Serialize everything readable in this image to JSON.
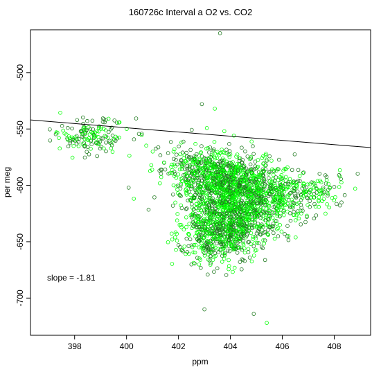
{
  "chart_data": {
    "type": "scatter",
    "title": "160726c   Interval a O2 vs. CO2",
    "xlabel": "ppm",
    "ylabel": "per meg",
    "xlim": [
      396.3,
      409.4
    ],
    "ylim": [
      -733,
      -462
    ],
    "xticks": [
      398,
      400,
      402,
      404,
      406,
      408
    ],
    "yticks": [
      -700,
      -650,
      -600,
      -550,
      -500
    ],
    "grid": false,
    "legend": "none",
    "annotation": "slope =  -1.81",
    "fit_line": {
      "slope": -1.81,
      "x": [
        396.3,
        409.4
      ],
      "y": [
        -542,
        -566.5
      ]
    },
    "colors": {
      "dark": "#1f7a1f",
      "bright": "#00ff00",
      "line": "#000000",
      "frame": "#000000"
    },
    "clusters": [
      {
        "center": [
          398.6,
          -556
        ],
        "spread": [
          0.75,
          8
        ],
        "count": 150
      },
      {
        "center": [
          403.9,
          -600
        ],
        "spread": [
          0.9,
          14
        ],
        "count": 800
      },
      {
        "center": [
          404.0,
          -632
        ],
        "spread": [
          0.8,
          16
        ],
        "count": 800
      },
      {
        "center": [
          402.8,
          -585
        ],
        "spread": [
          0.8,
          10
        ],
        "count": 250
      },
      {
        "center": [
          405.6,
          -610
        ],
        "spread": [
          0.7,
          14
        ],
        "count": 300
      },
      {
        "center": [
          407.2,
          -605
        ],
        "spread": [
          0.75,
          8
        ],
        "count": 120
      },
      {
        "center": [
          403.2,
          -650
        ],
        "spread": [
          0.6,
          10
        ],
        "count": 150
      }
    ],
    "outliers": [
      [
        403.6,
        -465
      ],
      [
        404.4,
        -462
      ],
      [
        402.9,
        -528
      ],
      [
        403.4,
        -532
      ],
      [
        404.9,
        -714
      ],
      [
        405.4,
        -722
      ],
      [
        403.0,
        -710
      ]
    ]
  }
}
